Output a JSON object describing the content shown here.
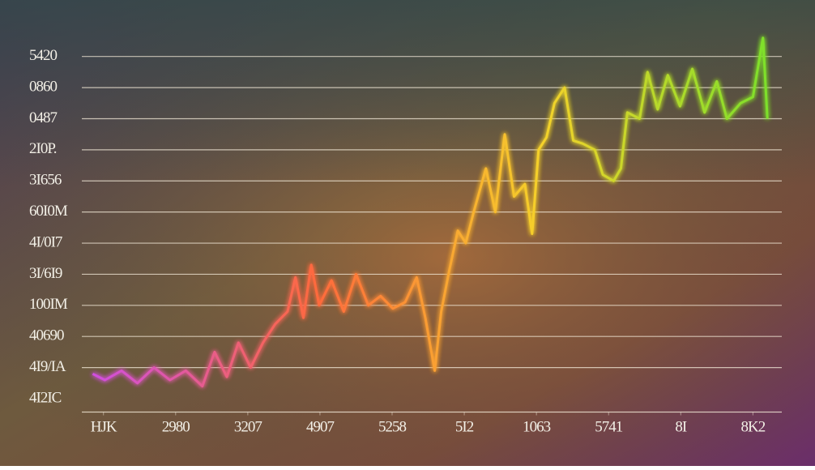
{
  "chart_data": {
    "type": "line",
    "x": [
      -0.15,
      0.02,
      0.25,
      0.47,
      0.7,
      0.92,
      1.14,
      1.37,
      1.54,
      1.71,
      1.87,
      2.04,
      2.21,
      2.38,
      2.55,
      2.66,
      2.77,
      2.88,
      2.99,
      3.16,
      3.33,
      3.5,
      3.67,
      3.84,
      4.01,
      4.18,
      4.34,
      4.46,
      4.59,
      4.68,
      4.79,
      4.91,
      5.02,
      5.13,
      5.3,
      5.43,
      5.56,
      5.69,
      5.84,
      5.94,
      6.03,
      6.14,
      6.25,
      6.39,
      6.51,
      6.64,
      6.81,
      6.92,
      7.07,
      7.17,
      7.26,
      7.43,
      7.54,
      7.68,
      7.82,
      7.99,
      8.16,
      8.33,
      8.5,
      8.64,
      8.83,
      9.0,
      9.14,
      9.2
    ],
    "series": [
      {
        "colors": [
          "#d04ee0",
          "#ff6a3c",
          "#f5d22a",
          "#7de02a"
        ],
        "values": [
          0.8,
          0.6,
          0.9,
          0.5,
          1.0,
          0.6,
          0.9,
          0.4,
          1.5,
          0.7,
          1.8,
          1.0,
          1.8,
          2.4,
          2.8,
          3.9,
          2.6,
          4.3,
          3.0,
          3.8,
          2.8,
          4.0,
          3.0,
          3.3,
          2.9,
          3.1,
          3.9,
          2.6,
          0.9,
          2.8,
          4.1,
          5.4,
          5.0,
          6.0,
          7.4,
          6.0,
          8.5,
          6.5,
          6.9,
          5.3,
          8.0,
          8.4,
          9.5,
          10.0,
          8.3,
          8.2,
          8.0,
          7.2,
          7.0,
          7.4,
          9.2,
          9.0,
          10.5,
          9.3,
          10.4,
          9.4,
          10.6,
          9.2,
          10.2,
          9.0,
          9.5,
          9.7,
          11.6,
          9.0
        ]
      }
    ],
    "xlim": [
      -0.3,
      9.4
    ],
    "xticks": [
      {
        "value": 0,
        "label": "HJK"
      },
      {
        "value": 1,
        "label": "2980"
      },
      {
        "value": 2,
        "label": "3207"
      },
      {
        "value": 3,
        "label": "4907"
      },
      {
        "value": 4,
        "label": "5258"
      },
      {
        "value": 5,
        "label": "5I2"
      },
      {
        "value": 6,
        "label": "1063"
      },
      {
        "value": 7,
        "label": "5741"
      },
      {
        "value": 8,
        "label": "8I"
      },
      {
        "value": 9,
        "label": "8K2"
      }
    ],
    "ylim": [
      -0.3,
      11.8
    ],
    "yticks": [
      {
        "value": 0,
        "label": "4I2IC"
      },
      {
        "value": 1,
        "label": "4I9/IA"
      },
      {
        "value": 2,
        "label": "40690"
      },
      {
        "value": 3,
        "label": "100IM"
      },
      {
        "value": 4,
        "label": "3I/6I9"
      },
      {
        "value": 5,
        "label": "4I/0I7"
      },
      {
        "value": 6,
        "label": "60I0M"
      },
      {
        "value": 7,
        "label": "3I656"
      },
      {
        "value": 8,
        "label": "2I0P."
      },
      {
        "value": 9,
        "label": "0487"
      },
      {
        "value": 10,
        "label": "0860"
      },
      {
        "value": 11,
        "label": "5420"
      }
    ],
    "grid": true
  }
}
